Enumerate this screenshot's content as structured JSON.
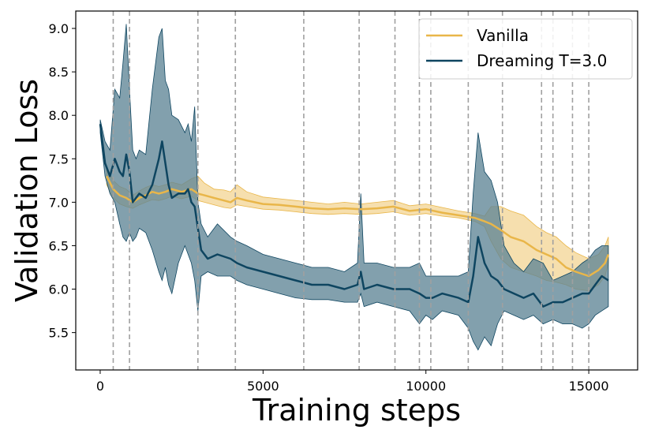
{
  "chart_data": {
    "type": "line",
    "xlabel": "Training steps",
    "ylabel": "Validation Loss",
    "xlim": [
      -750,
      16500
    ],
    "ylim": [
      5.07,
      9.2
    ],
    "xticks": [
      0,
      5000,
      10000,
      15000
    ],
    "xtick_labels": [
      "0",
      "5000",
      "10000",
      "15000"
    ],
    "yticks": [
      5.5,
      6.0,
      6.5,
      7.0,
      7.5,
      8.0,
      8.5,
      9.0
    ],
    "ytick_labels": [
      "5.5",
      "6.0",
      "6.5",
      "7.0",
      "7.5",
      "8.0",
      "8.5",
      "9.0"
    ],
    "grid": false,
    "legend_position": "top-right",
    "vlines": [
      400,
      900,
      3000,
      4150,
      6250,
      7950,
      9050,
      9800,
      10150,
      11300,
      12350,
      13550,
      13900,
      14500,
      15000
    ],
    "series": [
      {
        "name": "Vanilla",
        "color": "#e9b649",
        "band_color": "#eec46c",
        "x": [
          200,
          400,
          600,
          800,
          1000,
          1200,
          1400,
          1600,
          1800,
          2000,
          2200,
          2500,
          2800,
          3000,
          3200,
          3500,
          3800,
          4000,
          4200,
          4500,
          5000,
          5500,
          6000,
          6500,
          7000,
          7500,
          8000,
          8500,
          9000,
          9500,
          10000,
          10500,
          11000,
          11500,
          11800,
          12000,
          12300,
          12600,
          13000,
          13400,
          13700,
          14000,
          14300,
          14600,
          15000,
          15300,
          15500,
          15600
        ],
        "y": [
          7.3,
          7.15,
          7.08,
          7.05,
          7.0,
          7.05,
          7.08,
          7.12,
          7.1,
          7.12,
          7.15,
          7.12,
          7.15,
          7.1,
          7.08,
          7.05,
          7.02,
          7.0,
          7.05,
          7.02,
          6.98,
          6.97,
          6.95,
          6.93,
          6.92,
          6.93,
          6.92,
          6.93,
          6.95,
          6.9,
          6.92,
          6.88,
          6.85,
          6.82,
          6.78,
          6.75,
          6.68,
          6.6,
          6.55,
          6.45,
          6.4,
          6.35,
          6.25,
          6.2,
          6.15,
          6.22,
          6.3,
          6.4
        ],
        "lower": [
          7.2,
          7.05,
          6.98,
          6.95,
          6.93,
          6.97,
          7.0,
          7.03,
          7.02,
          7.04,
          7.07,
          7.04,
          7.07,
          7.02,
          7.0,
          6.97,
          6.94,
          6.93,
          6.97,
          6.95,
          6.92,
          6.91,
          6.89,
          6.87,
          6.86,
          6.87,
          6.86,
          6.87,
          6.89,
          6.85,
          6.87,
          6.84,
          6.82,
          6.78,
          6.72,
          6.55,
          6.35,
          6.25,
          6.2,
          6.15,
          6.1,
          6.08,
          6.05,
          6.0,
          5.98,
          6.05,
          6.15,
          6.3
        ],
        "upper": [
          7.4,
          7.25,
          7.18,
          7.15,
          7.08,
          7.13,
          7.17,
          7.2,
          7.18,
          7.2,
          7.23,
          7.2,
          7.27,
          7.3,
          7.22,
          7.15,
          7.14,
          7.12,
          7.2,
          7.12,
          7.06,
          7.04,
          7.02,
          7.0,
          6.98,
          7.0,
          6.98,
          7.0,
          7.02,
          6.96,
          6.98,
          6.94,
          6.9,
          6.87,
          6.84,
          6.95,
          6.95,
          6.9,
          6.85,
          6.72,
          6.65,
          6.6,
          6.5,
          6.42,
          6.35,
          6.4,
          6.5,
          6.6
        ]
      },
      {
        "name": "Dreaming T=3.0",
        "color": "#0e4560",
        "band_color": "#5f8596",
        "x": [
          0,
          150,
          300,
          450,
          600,
          700,
          800,
          900,
          1000,
          1100,
          1200,
          1400,
          1600,
          1800,
          1900,
          2000,
          2100,
          2200,
          2400,
          2600,
          2700,
          2800,
          2900,
          3000,
          3100,
          3300,
          3600,
          4000,
          4200,
          4500,
          5000,
          5500,
          6000,
          6500,
          7000,
          7500,
          7900,
          8000,
          8100,
          8500,
          9000,
          9500,
          9800,
          10000,
          10200,
          10500,
          11000,
          11300,
          11450,
          11600,
          11800,
          12000,
          12200,
          12400,
          12700,
          13000,
          13300,
          13600,
          13900,
          14200,
          14500,
          14800,
          15000,
          15200,
          15400,
          15600
        ],
        "y": [
          7.9,
          7.45,
          7.3,
          7.5,
          7.35,
          7.3,
          7.55,
          7.35,
          7.0,
          7.05,
          7.1,
          7.05,
          7.2,
          7.5,
          7.7,
          7.45,
          7.2,
          7.05,
          7.1,
          7.1,
          7.15,
          7.0,
          6.95,
          6.7,
          6.45,
          6.35,
          6.4,
          6.35,
          6.3,
          6.25,
          6.2,
          6.15,
          6.1,
          6.05,
          6.05,
          6.0,
          6.05,
          6.2,
          6.0,
          6.05,
          6.0,
          6.0,
          5.95,
          5.9,
          5.9,
          5.95,
          5.9,
          5.85,
          6.15,
          6.6,
          6.3,
          6.15,
          6.1,
          6.0,
          5.95,
          5.9,
          5.95,
          5.8,
          5.85,
          5.85,
          5.9,
          5.95,
          5.95,
          6.05,
          6.15,
          6.1
        ],
        "lower": [
          7.8,
          7.3,
          7.1,
          7.0,
          6.75,
          6.6,
          6.55,
          6.65,
          6.55,
          6.6,
          6.7,
          6.65,
          6.45,
          6.2,
          6.1,
          6.25,
          6.05,
          5.95,
          6.3,
          6.5,
          6.4,
          6.3,
          6.1,
          5.75,
          6.15,
          6.2,
          6.15,
          6.15,
          6.1,
          6.05,
          6.0,
          5.95,
          5.9,
          5.88,
          5.88,
          5.85,
          5.85,
          5.95,
          5.8,
          5.85,
          5.8,
          5.75,
          5.6,
          5.7,
          5.65,
          5.75,
          5.7,
          5.55,
          5.4,
          5.3,
          5.45,
          5.35,
          5.6,
          5.75,
          5.7,
          5.65,
          5.7,
          5.6,
          5.65,
          5.6,
          5.6,
          5.55,
          5.6,
          5.7,
          5.75,
          5.8
        ],
        "upper": [
          7.95,
          7.7,
          7.6,
          8.3,
          8.2,
          8.6,
          9.05,
          8.3,
          7.6,
          7.5,
          7.6,
          7.55,
          8.3,
          8.9,
          9.0,
          8.4,
          8.3,
          8.0,
          7.95,
          7.8,
          7.9,
          7.7,
          8.1,
          7.0,
          6.75,
          6.6,
          6.75,
          6.6,
          6.55,
          6.5,
          6.4,
          6.35,
          6.3,
          6.25,
          6.25,
          6.2,
          6.3,
          7.1,
          6.3,
          6.3,
          6.25,
          6.25,
          6.3,
          6.15,
          6.15,
          6.15,
          6.15,
          6.2,
          7.1,
          7.8,
          7.35,
          7.25,
          7.0,
          6.5,
          6.3,
          6.2,
          6.35,
          6.3,
          6.1,
          6.15,
          6.2,
          6.3,
          6.35,
          6.45,
          6.5,
          6.5
        ]
      }
    ]
  }
}
